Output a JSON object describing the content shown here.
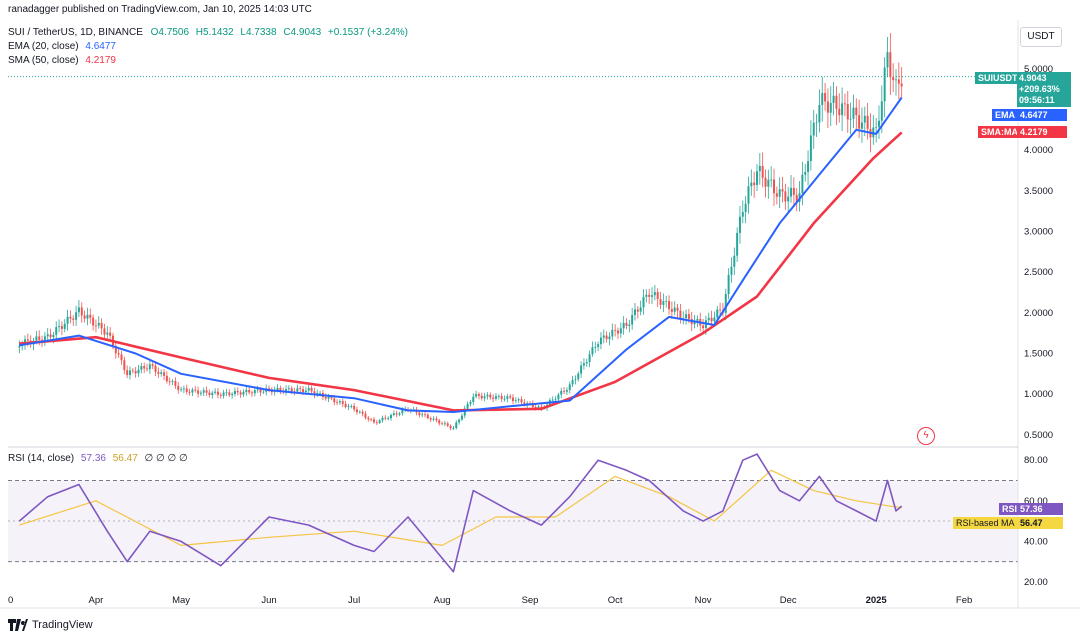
{
  "header": {
    "published": "ranadagger published on TradingView.com, Jan 10, 2025 14:03 UTC",
    "symbol_line": "SUI / TetherUS, 1D, BINANCE",
    "ohlc": {
      "o": "O4.7506",
      "h": "H5.1432",
      "l": "L4.7338",
      "c": "C4.9043",
      "chg": "+0.1537 (+3.24%)"
    },
    "ema_legend": "EMA (20, close)",
    "ema_value": "4.6477",
    "sma_legend": "SMA (50, close)",
    "sma_value": "4.2179",
    "rsi_legend": "RSI (14, close)",
    "rsi_value": "57.36",
    "rsi_ma_value": "56.47",
    "rsi_extra": "∅ ∅ ∅ ∅"
  },
  "currency": "USDT",
  "price_labels": {
    "symbol": "SUIUSDT",
    "last": "4.9043",
    "change_pct": "+209.63%",
    "countdown": "09:56:11",
    "ema_tag": "EMA",
    "ema": "4.6477",
    "sma_tag": "SMA:MA",
    "sma": "4.2179"
  },
  "rsi_labels": {
    "rsi_tag": "RSI",
    "rsi": "57.36",
    "ma_tag": "RSI-based MA",
    "ma": "56.47"
  },
  "colors": {
    "up": "#26a69a",
    "down": "#ef5350",
    "ema": "#2962ff",
    "sma": "#f23645",
    "rsi": "#7e57c2",
    "rsi_ma": "#f5c542"
  },
  "footer": "TradingView",
  "chart_data": [
    {
      "type": "candlestick",
      "title": "SUI / TetherUS, 1D, BINANCE",
      "ylabel": "USDT",
      "y_ticks": [
        "0.5000",
        "1.0000",
        "1.5000",
        "2.0000",
        "2.5000",
        "3.0000",
        "3.5000",
        "4.0000",
        "5.0000"
      ],
      "ylim": [
        0.35,
        5.6
      ],
      "x_ticks": [
        "0",
        "Apr",
        "May",
        "Jun",
        "Jul",
        "Aug",
        "Sep",
        "Oct",
        "Nov",
        "Dec",
        "2025",
        "Feb"
      ],
      "series": [
        {
          "name": "SUI / TetherUS",
          "points": [
            [
              "2024-03-05",
              1.62
            ],
            [
              "2024-03-15",
              1.7
            ],
            [
              "2024-03-26",
              2.02
            ],
            [
              "2024-04-05",
              1.75
            ],
            [
              "2024-04-12",
              1.25
            ],
            [
              "2024-04-20",
              1.35
            ],
            [
              "2024-05-01",
              1.05
            ],
            [
              "2024-05-15",
              1.0
            ],
            [
              "2024-06-01",
              1.05
            ],
            [
              "2024-06-15",
              1.05
            ],
            [
              "2024-07-01",
              0.82
            ],
            [
              "2024-07-08",
              0.65
            ],
            [
              "2024-07-20",
              0.82
            ],
            [
              "2024-08-05",
              0.58
            ],
            [
              "2024-08-12",
              0.98
            ],
            [
              "2024-08-25",
              0.95
            ],
            [
              "2024-09-05",
              0.82
            ],
            [
              "2024-09-15",
              1.1
            ],
            [
              "2024-09-25",
              1.65
            ],
            [
              "2024-10-05",
              1.85
            ],
            [
              "2024-10-13",
              2.25
            ],
            [
              "2024-10-25",
              1.95
            ],
            [
              "2024-11-01",
              1.85
            ],
            [
              "2024-11-08",
              2.05
            ],
            [
              "2024-11-15",
              3.3
            ],
            [
              "2024-11-20",
              3.75
            ],
            [
              "2024-11-28",
              3.45
            ],
            [
              "2024-12-05",
              3.45
            ],
            [
              "2024-12-12",
              4.6
            ],
            [
              "2024-12-18",
              4.55
            ],
            [
              "2024-12-25",
              4.4
            ],
            [
              "2025-01-01",
              4.2
            ],
            [
              "2025-01-05",
              5.15
            ],
            [
              "2025-01-08",
              4.75
            ],
            [
              "2025-01-10",
              4.9043
            ]
          ]
        },
        {
          "name": "EMA (20, close)",
          "points": [
            [
              "2024-03-05",
              1.6
            ],
            [
              "2024-03-26",
              1.72
            ],
            [
              "2024-04-15",
              1.5
            ],
            [
              "2024-05-01",
              1.25
            ],
            [
              "2024-06-01",
              1.05
            ],
            [
              "2024-07-01",
              0.95
            ],
            [
              "2024-07-20",
              0.8
            ],
            [
              "2024-08-05",
              0.78
            ],
            [
              "2024-08-25",
              0.85
            ],
            [
              "2024-09-15",
              0.92
            ],
            [
              "2024-10-05",
              1.55
            ],
            [
              "2024-10-20",
              1.95
            ],
            [
              "2024-11-05",
              1.85
            ],
            [
              "2024-11-15",
              2.4
            ],
            [
              "2024-11-28",
              3.1
            ],
            [
              "2024-12-12",
              3.7
            ],
            [
              "2024-12-25",
              4.25
            ],
            [
              "2025-01-01",
              4.2
            ],
            [
              "2025-01-10",
              4.6477
            ]
          ]
        },
        {
          "name": "SMA (50, close)",
          "points": [
            [
              "2024-03-05",
              1.62
            ],
            [
              "2024-04-01",
              1.7
            ],
            [
              "2024-05-01",
              1.45
            ],
            [
              "2024-06-01",
              1.2
            ],
            [
              "2024-07-01",
              1.05
            ],
            [
              "2024-08-05",
              0.8
            ],
            [
              "2024-09-05",
              0.82
            ],
            [
              "2024-10-01",
              1.15
            ],
            [
              "2024-11-01",
              1.75
            ],
            [
              "2024-11-20",
              2.2
            ],
            [
              "2024-12-10",
              3.1
            ],
            [
              "2024-12-31",
              3.9
            ],
            [
              "2025-01-10",
              4.2179
            ]
          ]
        }
      ]
    },
    {
      "type": "line",
      "title": "RSI (14, close)",
      "y_ticks": [
        "20.00",
        "40.00",
        "60.00",
        "80.00"
      ],
      "ylim": [
        18,
        86
      ],
      "bands": [
        30,
        70
      ],
      "series": [
        {
          "name": "RSI",
          "points": [
            [
              "2024-03-05",
              50
            ],
            [
              "2024-03-15",
              62
            ],
            [
              "2024-03-26",
              68
            ],
            [
              "2024-04-05",
              45
            ],
            [
              "2024-04-12",
              30
            ],
            [
              "2024-04-20",
              45
            ],
            [
              "2024-05-01",
              40
            ],
            [
              "2024-05-15",
              28
            ],
            [
              "2024-06-01",
              52
            ],
            [
              "2024-06-15",
              48
            ],
            [
              "2024-07-01",
              38
            ],
            [
              "2024-07-08",
              35
            ],
            [
              "2024-07-20",
              52
            ],
            [
              "2024-08-05",
              25
            ],
            [
              "2024-08-12",
              65
            ],
            [
              "2024-08-25",
              55
            ],
            [
              "2024-09-05",
              48
            ],
            [
              "2024-09-15",
              62
            ],
            [
              "2024-09-25",
              80
            ],
            [
              "2024-10-05",
              75
            ],
            [
              "2024-10-13",
              70
            ],
            [
              "2024-10-25",
              55
            ],
            [
              "2024-11-01",
              50
            ],
            [
              "2024-11-08",
              55
            ],
            [
              "2024-11-15",
              80
            ],
            [
              "2024-11-20",
              83
            ],
            [
              "2024-11-28",
              65
            ],
            [
              "2024-12-05",
              60
            ],
            [
              "2024-12-12",
              72
            ],
            [
              "2024-12-18",
              60
            ],
            [
              "2024-12-25",
              55
            ],
            [
              "2025-01-01",
              50
            ],
            [
              "2025-01-05",
              70
            ],
            [
              "2025-01-08",
              55
            ],
            [
              "2025-01-10",
              57.36
            ]
          ]
        },
        {
          "name": "RSI-based MA",
          "points": [
            [
              "2024-03-05",
              48
            ],
            [
              "2024-04-01",
              60
            ],
            [
              "2024-05-01",
              38
            ],
            [
              "2024-06-01",
              42
            ],
            [
              "2024-07-01",
              45
            ],
            [
              "2024-08-01",
              38
            ],
            [
              "2024-08-20",
              52
            ],
            [
              "2024-09-10",
              52
            ],
            [
              "2024-10-01",
              72
            ],
            [
              "2024-10-20",
              62
            ],
            [
              "2024-11-05",
              50
            ],
            [
              "2024-11-25",
              75
            ],
            [
              "2024-12-10",
              65
            ],
            [
              "2024-12-25",
              60
            ],
            [
              "2025-01-10",
              56.47
            ]
          ]
        }
      ]
    }
  ]
}
